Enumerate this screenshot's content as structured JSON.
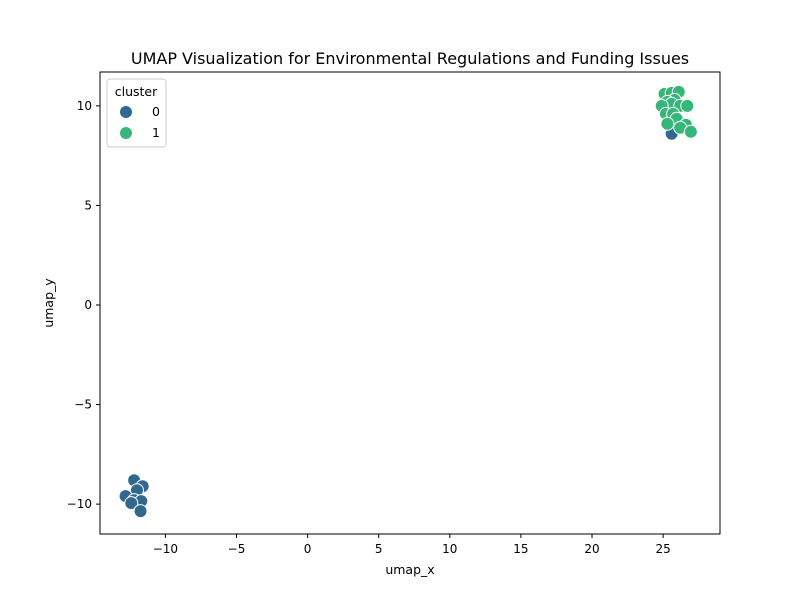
{
  "chart_data": {
    "type": "scatter",
    "title": "UMAP Visualization for Environmental Regulations and Funding Issues",
    "xlabel": "umap_x",
    "ylabel": "umap_y",
    "xlim": [
      -14.6,
      29.0
    ],
    "ylim": [
      -11.5,
      11.7
    ],
    "xticks": [
      -10,
      -5,
      0,
      5,
      10,
      15,
      20,
      25
    ],
    "yticks": [
      -10,
      -5,
      0,
      5,
      10
    ],
    "xtick_labels": [
      "−10",
      "−5",
      "0",
      "5",
      "10",
      "15",
      "20",
      "25"
    ],
    "ytick_labels": [
      "−10",
      "−5",
      "0",
      "5",
      "10"
    ],
    "grid": false,
    "legend": {
      "title": "cluster",
      "placement": "top-left",
      "entries": [
        {
          "label": "0",
          "color": "#31688e"
        },
        {
          "label": "1",
          "color": "#35b779"
        }
      ]
    },
    "series": [
      {
        "name": "0",
        "color": "#31688e",
        "points": [
          [
            -12.2,
            -8.8
          ],
          [
            -11.6,
            -9.1
          ],
          [
            -12.0,
            -9.3
          ],
          [
            -12.8,
            -9.6
          ],
          [
            -12.2,
            -9.8
          ],
          [
            -11.7,
            -9.85
          ],
          [
            -12.4,
            -9.95
          ],
          [
            -11.75,
            -10.35
          ],
          [
            25.6,
            8.6
          ]
        ]
      },
      {
        "name": "1",
        "color": "#35b779",
        "points": [
          [
            25.1,
            10.6
          ],
          [
            25.6,
            10.65
          ],
          [
            26.1,
            10.7
          ],
          [
            25.8,
            10.3
          ],
          [
            25.3,
            10.2
          ],
          [
            25.6,
            10.1
          ],
          [
            24.9,
            10.0
          ],
          [
            26.2,
            10.0
          ],
          [
            26.7,
            10.0
          ],
          [
            25.2,
            9.6
          ],
          [
            25.7,
            9.6
          ],
          [
            25.95,
            9.35
          ],
          [
            25.3,
            9.1
          ],
          [
            26.6,
            9.05
          ],
          [
            26.2,
            8.9
          ],
          [
            26.95,
            8.7
          ]
        ]
      }
    ]
  }
}
